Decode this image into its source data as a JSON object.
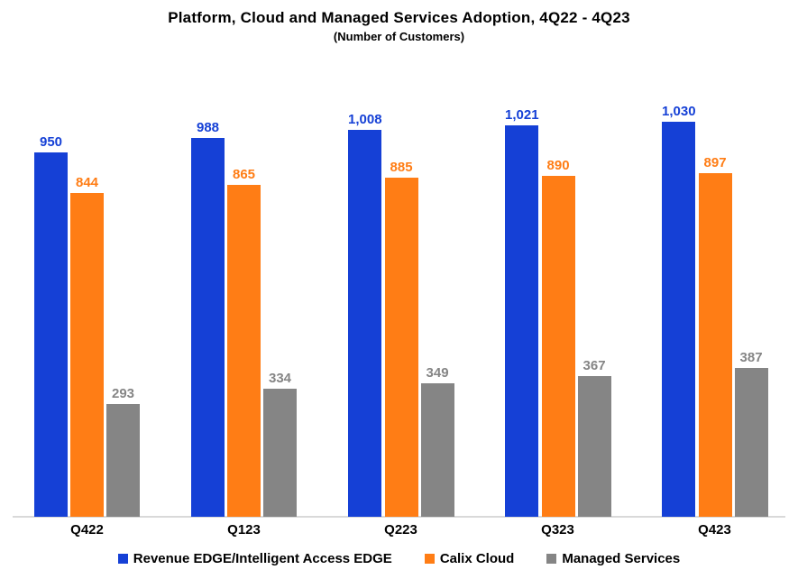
{
  "title": "Platform, Cloud and Managed Services Adoption, 4Q22 - 4Q23",
  "subtitle": "(Number of Customers)",
  "chart_data": {
    "type": "bar",
    "categories": [
      "Q422",
      "Q123",
      "Q223",
      "Q323",
      "Q423"
    ],
    "series": [
      {
        "name": "Revenue EDGE/Intelligent Access EDGE",
        "color": "#1540d6",
        "values": [
          950,
          988,
          1008,
          1021,
          1030
        ]
      },
      {
        "name": "Calix Cloud",
        "color": "#ff7d15",
        "values": [
          844,
          865,
          885,
          890,
          897
        ]
      },
      {
        "name": "Managed Services",
        "color": "#858585",
        "values": [
          293,
          334,
          349,
          367,
          387
        ]
      }
    ],
    "data_labels": true,
    "grid": false,
    "legend_position": "bottom",
    "ylim": [
      0,
      1100
    ],
    "axis_line_color": "#d9d9d9"
  }
}
